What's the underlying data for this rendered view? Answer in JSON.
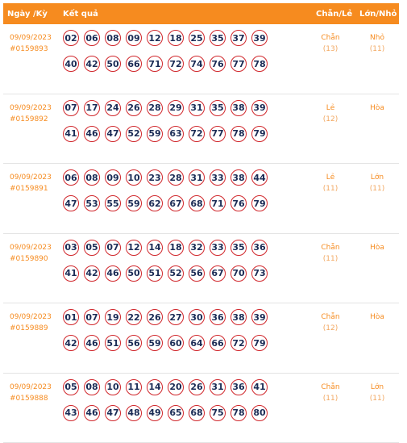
{
  "header": {
    "date": "Ngày /Kỳ",
    "result": "Kết quả",
    "chan_le": "Chẵn/Lẻ",
    "lon_nho": "Lớn/Nhỏ"
  },
  "draws": [
    {
      "date": "09/09/2023",
      "id": "#0159893",
      "numbers": [
        "02",
        "06",
        "08",
        "09",
        "12",
        "18",
        "25",
        "35",
        "37",
        "39",
        "40",
        "42",
        "50",
        "66",
        "71",
        "72",
        "74",
        "76",
        "77",
        "78"
      ],
      "chan_le": "Chẵn",
      "chan_le_count": "(13)",
      "lon_nho": "Nhỏ",
      "lon_nho_count": "(11)"
    },
    {
      "date": "09/09/2023",
      "id": "#0159892",
      "numbers": [
        "07",
        "17",
        "24",
        "26",
        "28",
        "29",
        "31",
        "35",
        "38",
        "39",
        "41",
        "46",
        "47",
        "52",
        "59",
        "63",
        "72",
        "77",
        "78",
        "79"
      ],
      "chan_le": "Lẻ",
      "chan_le_count": "(12)",
      "lon_nho": "Hòa",
      "lon_nho_count": ""
    },
    {
      "date": "09/09/2023",
      "id": "#0159891",
      "numbers": [
        "06",
        "08",
        "09",
        "10",
        "23",
        "28",
        "31",
        "33",
        "38",
        "44",
        "47",
        "53",
        "55",
        "59",
        "62",
        "67",
        "68",
        "71",
        "76",
        "79"
      ],
      "chan_le": "Lẻ",
      "chan_le_count": "(11)",
      "lon_nho": "Lớn",
      "lon_nho_count": "(11)"
    },
    {
      "date": "09/09/2023",
      "id": "#0159890",
      "numbers": [
        "03",
        "05",
        "07",
        "12",
        "14",
        "18",
        "32",
        "33",
        "35",
        "36",
        "41",
        "42",
        "46",
        "50",
        "51",
        "52",
        "56",
        "67",
        "70",
        "73"
      ],
      "chan_le": "Chẵn",
      "chan_le_count": "(11)",
      "lon_nho": "Hòa",
      "lon_nho_count": ""
    },
    {
      "date": "09/09/2023",
      "id": "#0159889",
      "numbers": [
        "01",
        "07",
        "19",
        "22",
        "26",
        "27",
        "30",
        "36",
        "38",
        "39",
        "42",
        "46",
        "51",
        "56",
        "59",
        "60",
        "64",
        "66",
        "72",
        "79"
      ],
      "chan_le": "Chẵn",
      "chan_le_count": "(12)",
      "lon_nho": "Hòa",
      "lon_nho_count": ""
    },
    {
      "date": "09/09/2023",
      "id": "#0159888",
      "numbers": [
        "05",
        "08",
        "10",
        "11",
        "14",
        "20",
        "26",
        "31",
        "36",
        "41",
        "43",
        "46",
        "47",
        "48",
        "49",
        "65",
        "68",
        "75",
        "78",
        "80"
      ],
      "chan_le": "Chẵn",
      "chan_le_count": "(11)",
      "lon_nho": "Lớn",
      "lon_nho_count": "(11)"
    }
  ]
}
